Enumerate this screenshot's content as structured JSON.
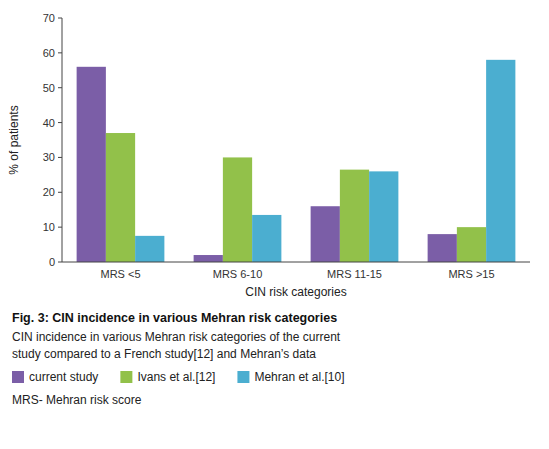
{
  "chart_data": {
    "type": "bar",
    "title": "Fig. 3: CIN incidence in various Mehran risk categories",
    "annotations": [
      "CIN incidence in various Mehran risk categories of the current",
      "study compared to a French study[12] and Mehran’s data",
      "MRS- Mehran risk score"
    ],
    "x_label": "CIN risk categories",
    "y_label": "% of patients",
    "categories": [
      "MRS <5",
      "MRS 6-10",
      "MRS 11-15",
      "MRS >15"
    ],
    "series": [
      {
        "name": "current study",
        "color": "#7B5EA7",
        "values": [
          56,
          2,
          16,
          8
        ]
      },
      {
        "name": "Ivans et al.[12]",
        "color": "#92C14A",
        "values": [
          37,
          30,
          26.5,
          10
        ]
      },
      {
        "name": "Mehran et al.[10]",
        "color": "#4BAED0",
        "values": [
          7.5,
          13.5,
          26,
          58
        ]
      }
    ],
    "ylim": [
      0,
      70
    ],
    "yticks": [
      0,
      10,
      20,
      30,
      40,
      50,
      60,
      70
    ],
    "grid": false
  }
}
